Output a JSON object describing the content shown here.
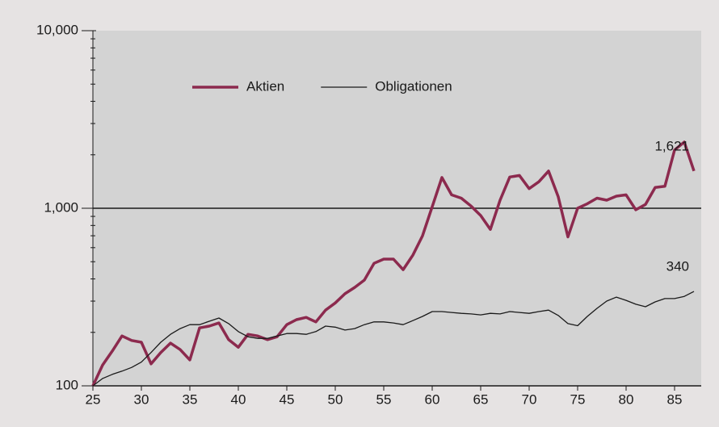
{
  "chart_data": {
    "type": "line",
    "log_scale": "y",
    "x": [
      25,
      26,
      27,
      28,
      29,
      30,
      31,
      32,
      33,
      34,
      35,
      36,
      37,
      38,
      39,
      40,
      41,
      42,
      43,
      44,
      45,
      46,
      47,
      48,
      49,
      50,
      51,
      52,
      53,
      54,
      55,
      56,
      57,
      58,
      59,
      60,
      61,
      62,
      63,
      64,
      65,
      66,
      67,
      68,
      69,
      70,
      71,
      72,
      73,
      74,
      75,
      76,
      77,
      78,
      79,
      80,
      81,
      82,
      83,
      84,
      85,
      86,
      87
    ],
    "series": [
      {
        "name": "Aktien",
        "color": "#8c2a4e",
        "values": [
          100,
          131,
          157,
          191,
          180,
          176,
          133,
          154,
          174,
          160,
          140,
          212,
          217,
          226,
          182,
          165,
          195,
          191,
          182,
          189,
          221,
          236,
          243,
          229,
          267,
          293,
          330,
          358,
          394,
          490,
          517,
          517,
          451,
          544,
          700,
          1020,
          1490,
          1190,
          1140,
          1030,
          910,
          760,
          1110,
          1500,
          1530,
          1290,
          1410,
          1620,
          1160,
          690,
          1000,
          1060,
          1140,
          1110,
          1170,
          1190,
          980,
          1050,
          1310,
          1330,
          2130,
          2360,
          1621
        ],
        "value_labels": [
          null,
          null,
          null,
          null,
          null,
          null,
          null,
          null,
          null,
          null,
          null,
          null,
          null,
          null,
          null,
          null,
          null,
          null,
          null,
          null,
          null,
          null,
          null,
          null,
          null,
          null,
          null,
          null,
          null,
          null,
          null,
          null,
          null,
          null,
          null,
          null,
          null,
          null,
          null,
          null,
          null,
          null,
          null,
          null,
          null,
          null,
          null,
          null,
          null,
          null,
          null,
          null,
          null,
          null,
          null,
          null,
          null,
          null,
          null,
          null,
          null,
          null,
          "1,621"
        ]
      },
      {
        "name": "Obligationen",
        "color": "#1a1a1a",
        "values": [
          100,
          110,
          116,
          121,
          127,
          136,
          154,
          176,
          195,
          210,
          221,
          221,
          231,
          241,
          224,
          202,
          189,
          185,
          185,
          191,
          197,
          197,
          195,
          202,
          217,
          214,
          206,
          210,
          221,
          229,
          229,
          226,
          221,
          233,
          246,
          262,
          262,
          259,
          256,
          254,
          251,
          256,
          254,
          262,
          259,
          256,
          262,
          267,
          249,
          224,
          218,
          246,
          273,
          300,
          316,
          303,
          288,
          279,
          297,
          310,
          310,
          319,
          340
        ],
        "value_labels": [
          null,
          null,
          null,
          null,
          null,
          null,
          null,
          null,
          null,
          null,
          null,
          null,
          null,
          null,
          null,
          null,
          null,
          null,
          null,
          null,
          null,
          null,
          null,
          null,
          null,
          null,
          null,
          null,
          null,
          null,
          null,
          null,
          null,
          null,
          null,
          null,
          null,
          null,
          null,
          null,
          null,
          null,
          null,
          null,
          null,
          null,
          null,
          null,
          null,
          null,
          null,
          null,
          null,
          null,
          null,
          null,
          null,
          null,
          null,
          null,
          null,
          null,
          "340"
        ]
      }
    ],
    "xlim": [
      25,
      87.75
    ],
    "xticks": [
      25,
      30,
      35,
      40,
      45,
      50,
      55,
      60,
      65,
      70,
      75,
      80,
      85
    ],
    "ylim": [
      100,
      10000
    ],
    "yticks": [
      100,
      {
        "value": 1000,
        "label": "1,000"
      },
      {
        "value": 10000,
        "label": "10,000"
      }
    ],
    "yminorticks": [
      200,
      300,
      400,
      500,
      600,
      700,
      800,
      900,
      2000,
      3000,
      4000,
      5000,
      6000,
      7000,
      8000,
      9000
    ],
    "reference_line": 1000,
    "legend": "upper left"
  }
}
